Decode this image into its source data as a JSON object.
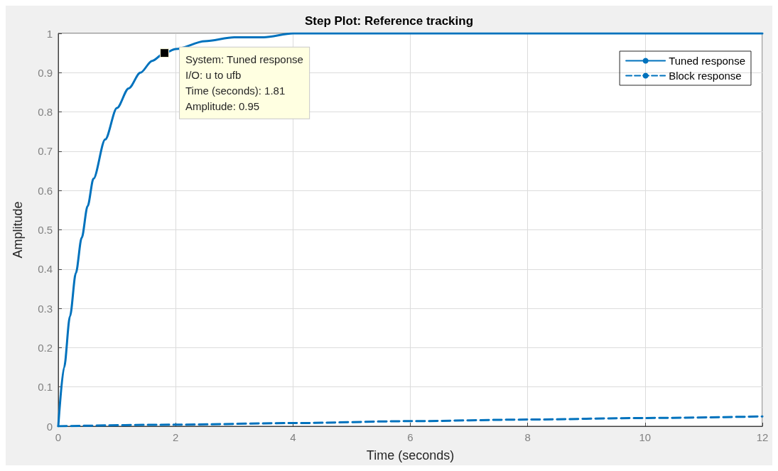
{
  "chart_data": {
    "type": "line",
    "title": "Step Plot: Reference tracking",
    "xlabel": "Time (seconds)",
    "ylabel": "Amplitude",
    "xlim": [
      0,
      12
    ],
    "xticks": [
      0,
      2,
      4,
      6,
      8,
      10,
      12
    ],
    "ylim": [
      0,
      1
    ],
    "yticks": [
      0,
      0.1,
      0.2,
      0.3,
      0.4,
      0.5,
      0.6,
      0.7,
      0.8,
      0.9,
      1
    ],
    "grid": true,
    "legend": "top right",
    "marker": "none",
    "series": [
      {
        "name": "Tuned response",
        "color": "#0072bd",
        "line_style": "solid",
        "x": [
          0,
          0.1,
          0.2,
          0.3,
          0.4,
          0.5,
          0.6,
          0.8,
          1.0,
          1.2,
          1.4,
          1.6,
          1.81,
          2.0,
          2.5,
          3,
          3.5,
          4,
          5,
          6,
          8,
          10,
          12
        ],
        "values": [
          0,
          0.15,
          0.28,
          0.39,
          0.48,
          0.56,
          0.63,
          0.73,
          0.81,
          0.86,
          0.9,
          0.93,
          0.95,
          0.96,
          0.98,
          0.99,
          0.99,
          1,
          1,
          1,
          1,
          1,
          1
        ]
      },
      {
        "name": "Block response",
        "color": "#0072bd",
        "line_style": "dashed",
        "x": [
          0,
          2,
          4,
          6,
          8,
          10,
          12
        ],
        "values": [
          0,
          0.004,
          0.008,
          0.013,
          0.017,
          0.021,
          0.025
        ]
      }
    ],
    "annotations": [
      {
        "text": "System: Tuned response\nI/O: u to ufb\nTime (seconds): 1.81\nAmplitude: 0.95",
        "x": 1.81,
        "y": 0.95
      }
    ]
  }
}
